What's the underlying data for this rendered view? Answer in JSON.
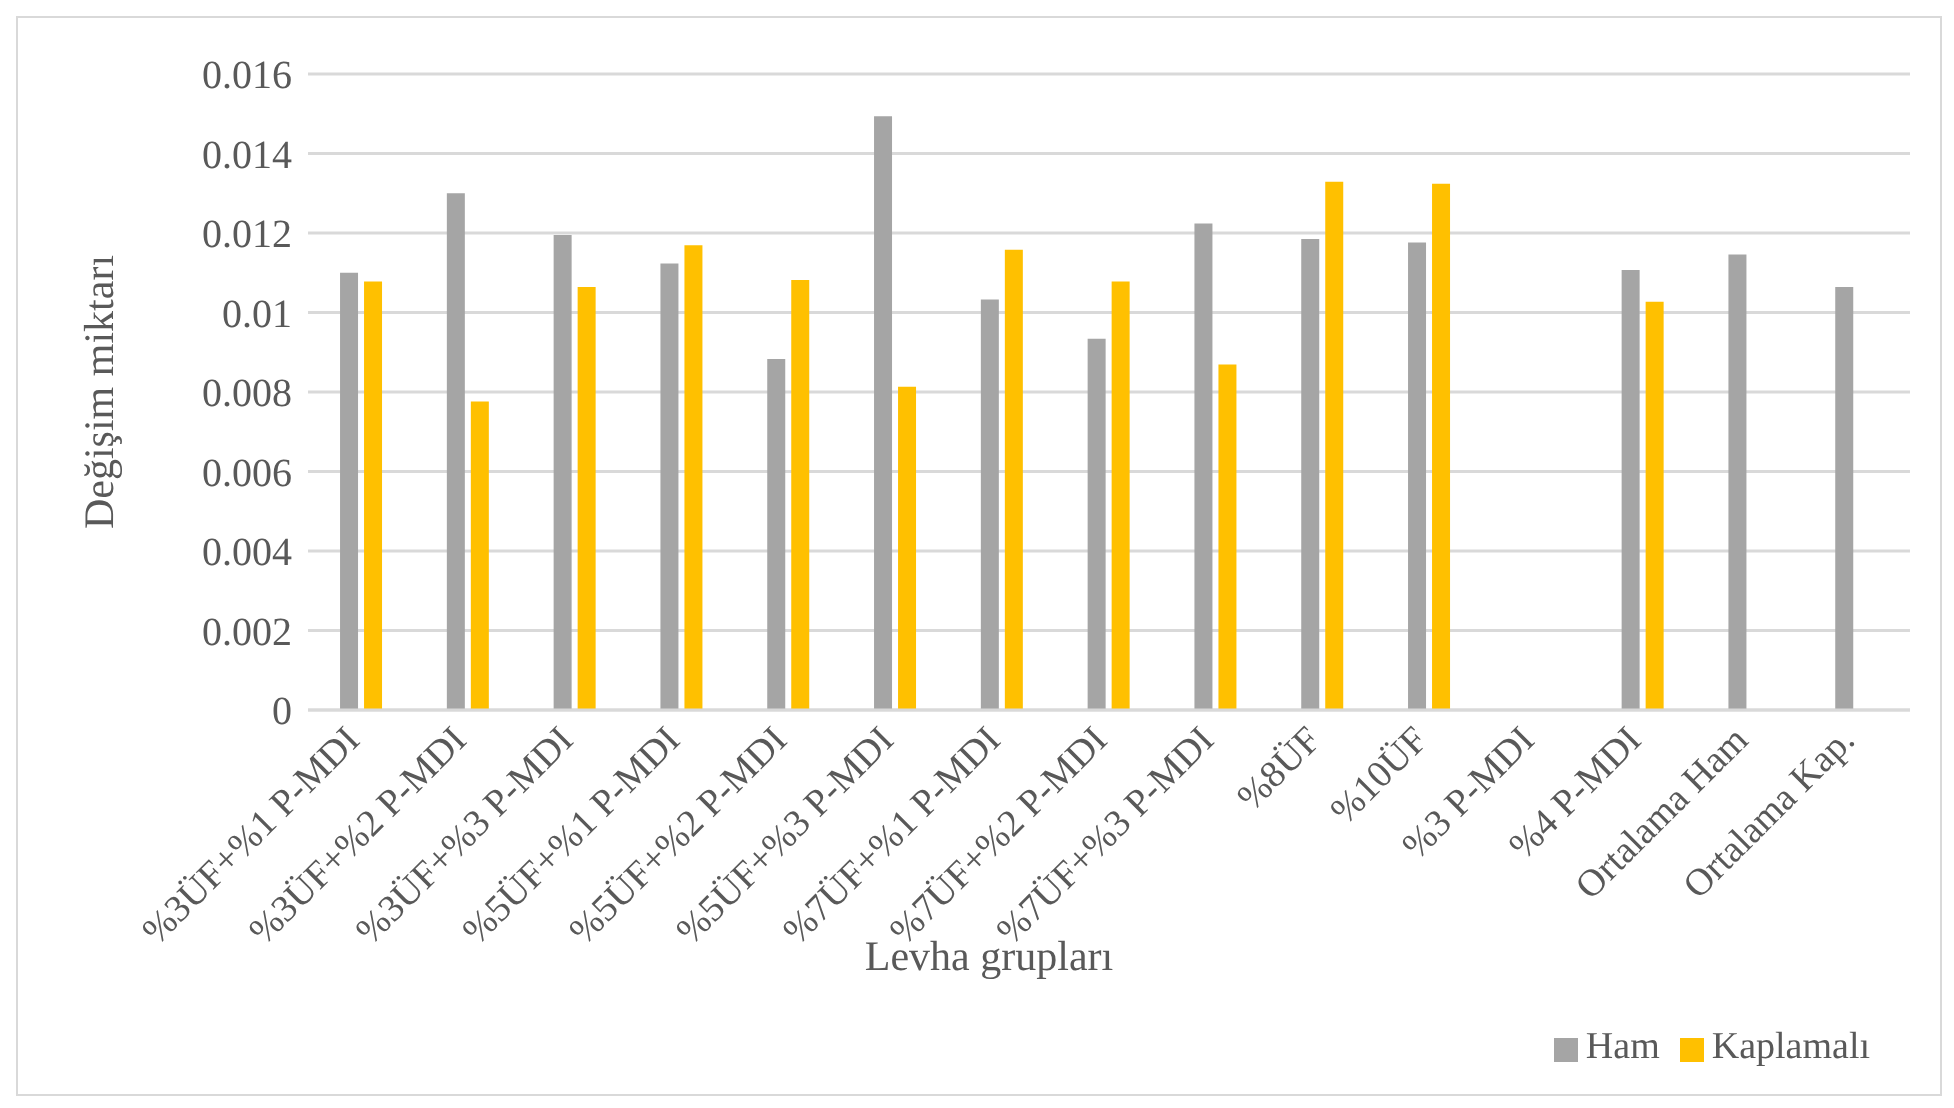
{
  "chart_data": {
    "type": "bar",
    "xlabel": "Levha grupları",
    "ylabel": "Değişim miktarı",
    "categories": [
      "%3ÜF+%1 P-MDI",
      "%3ÜF+%2 P-MDI",
      "%3ÜF+%3 P-MDI",
      "%5ÜF+%1 P-MDI",
      "%5ÜF+%2 P-MDI",
      "%5ÜF+%3 P-MDI",
      "%7ÜF+%1 P-MDI",
      "%7ÜF+%2 P-MDI",
      "%7ÜF+%3 P-MDI",
      "%8ÜF",
      "%10ÜF",
      "%3 P-MDI",
      "%4 P-MDI",
      "Ortalama Ham",
      "Ortalama Kap."
    ],
    "series": [
      {
        "name": "Ham",
        "color": "#a5a5a5",
        "values": [
          0.011,
          0.013,
          0.01195,
          0.01123,
          0.00883,
          0.01494,
          0.01033,
          0.00934,
          0.01224,
          0.01185,
          0.01176,
          null,
          0.01107,
          0.01146,
          0.01064
        ]
      },
      {
        "name": "Kaplamalı",
        "color": "#ffc000",
        "values": [
          0.01078,
          0.00776,
          0.01064,
          0.01169,
          0.01082,
          0.00813,
          0.01158,
          0.01078,
          0.00869,
          0.01329,
          0.01324,
          null,
          0.01027,
          null,
          null
        ]
      }
    ],
    "ylim": [
      0,
      0.016
    ],
    "yticks": [
      0,
      0.002,
      0.004,
      0.006,
      0.008,
      0.01,
      0.012,
      0.014,
      0.016
    ],
    "grid": "y",
    "legend": "bottom right"
  }
}
